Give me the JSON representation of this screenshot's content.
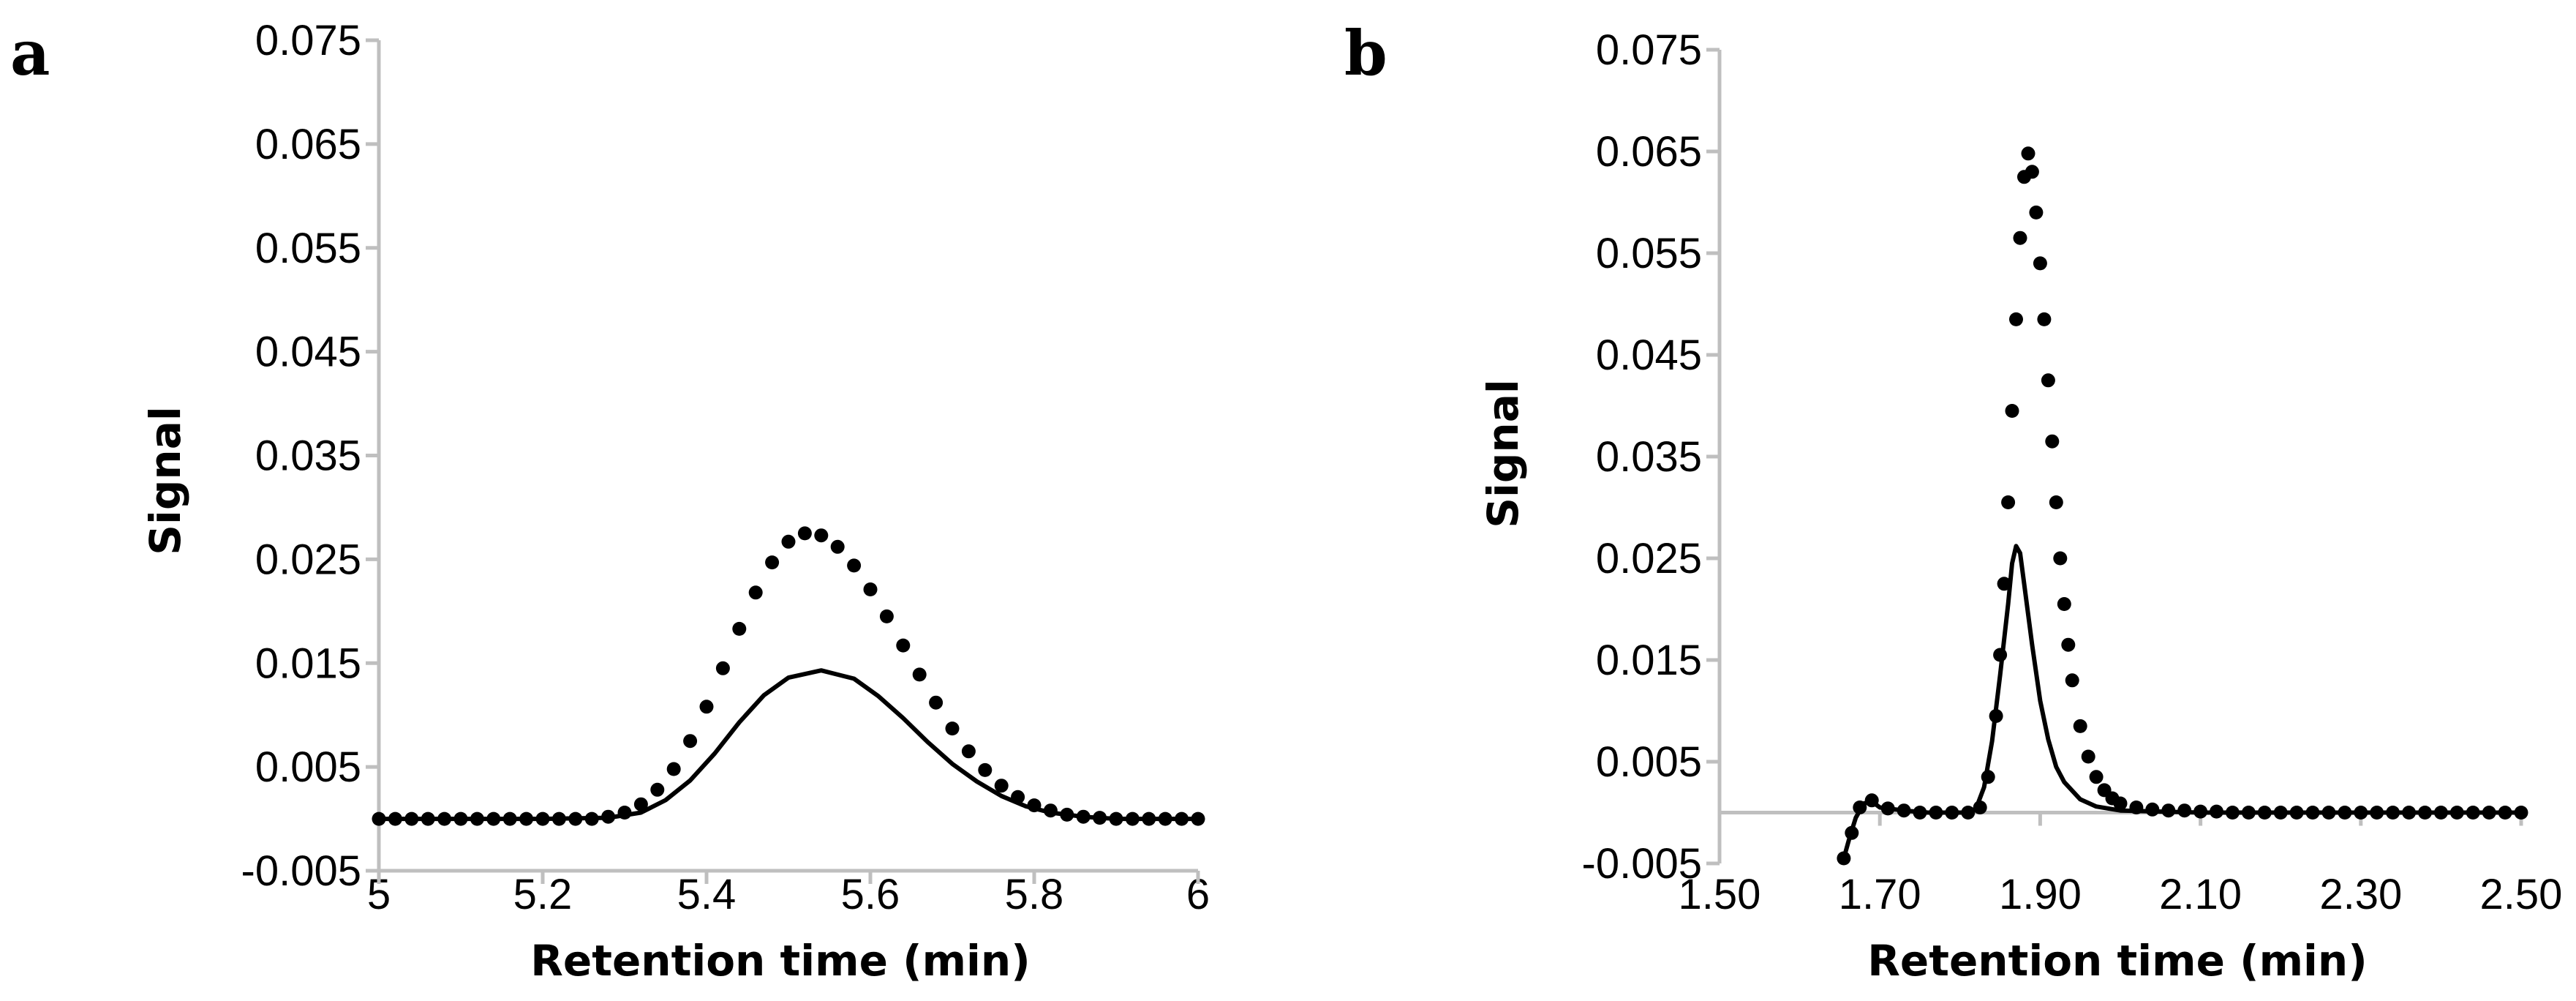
{
  "chart_data": [
    {
      "panel": "a",
      "type": "line",
      "title": "",
      "xlabel": "Retention time (min)",
      "ylabel": "Signal",
      "xlim": [
        5,
        6
      ],
      "ylim": [
        -0.005,
        0.075
      ],
      "xticks": [
        5,
        5.2,
        5.4,
        5.6,
        5.8,
        6
      ],
      "xtick_labels": [
        "5",
        "5.2",
        "5.4",
        "5.6",
        "5.8",
        "6"
      ],
      "yticks": [
        0.075,
        0.065,
        0.055,
        0.045,
        0.035,
        0.025,
        0.015,
        0.005,
        -0.005
      ],
      "ytick_labels": [
        "0.075",
        "0.065",
        "0.055",
        "0.045",
        "0.035",
        "0.025",
        "0.015",
        "0.005",
        "-0.005"
      ],
      "baseline": 0,
      "series": [
        {
          "name": "solid",
          "style": "solid",
          "x": [
            5.0,
            5.1,
            5.2,
            5.28,
            5.32,
            5.35,
            5.38,
            5.41,
            5.44,
            5.47,
            5.5,
            5.54,
            5.58,
            5.61,
            5.64,
            5.67,
            5.7,
            5.73,
            5.76,
            5.79,
            5.82,
            5.86,
            5.9,
            6.0
          ],
          "y": [
            0.0,
            0.0,
            0.0,
            0.0001,
            0.0006,
            0.0018,
            0.0037,
            0.0063,
            0.0093,
            0.0119,
            0.0136,
            0.0143,
            0.0135,
            0.0118,
            0.0097,
            0.0074,
            0.0053,
            0.0036,
            0.0022,
            0.0012,
            0.0006,
            0.0002,
            0.0,
            0.0
          ]
        },
        {
          "name": "dotted",
          "style": "dotted",
          "x": [
            5.0,
            5.02,
            5.04,
            5.06,
            5.08,
            5.1,
            5.12,
            5.14,
            5.16,
            5.18,
            5.2,
            5.22,
            5.24,
            5.26,
            5.28,
            5.3,
            5.32,
            5.34,
            5.36,
            5.38,
            5.4,
            5.42,
            5.44,
            5.46,
            5.48,
            5.5,
            5.52,
            5.54,
            5.56,
            5.58,
            5.6,
            5.62,
            5.64,
            5.66,
            5.68,
            5.7,
            5.72,
            5.74,
            5.76,
            5.78,
            5.8,
            5.82,
            5.84,
            5.86,
            5.88,
            5.9,
            5.92,
            5.94,
            5.96,
            5.98,
            6.0
          ],
          "y": [
            0.0,
            0.0,
            0.0,
            0.0,
            0.0,
            0.0,
            0.0,
            0.0,
            0.0,
            0.0,
            0.0,
            0.0,
            0.0,
            0.0,
            0.0002,
            0.0006,
            0.0014,
            0.0028,
            0.0048,
            0.0075,
            0.0108,
            0.0145,
            0.0183,
            0.0218,
            0.0247,
            0.0267,
            0.0275,
            0.0273,
            0.0262,
            0.0244,
            0.0221,
            0.0195,
            0.0167,
            0.0139,
            0.0112,
            0.0087,
            0.0065,
            0.0047,
            0.0032,
            0.0021,
            0.0013,
            0.0008,
            0.0004,
            0.0002,
            0.0001,
            0.0,
            0.0,
            0.0,
            0.0,
            0.0,
            0.0
          ]
        }
      ]
    },
    {
      "panel": "b",
      "type": "line",
      "title": "",
      "xlabel": "Retention time (min)",
      "ylabel": "Signal",
      "xlim": [
        1.5,
        2.5
      ],
      "ylim": [
        -0.005,
        0.075
      ],
      "xticks": [
        1.5,
        1.7,
        1.9,
        2.1,
        2.3,
        2.5
      ],
      "xtick_labels": [
        "1.50",
        "1.70",
        "1.90",
        "2.10",
        "2.30",
        "2.50"
      ],
      "yticks": [
        0.075,
        0.065,
        0.055,
        0.045,
        0.035,
        0.025,
        0.015,
        0.005,
        -0.005
      ],
      "ytick_labels": [
        "0.075",
        "0.065",
        "0.055",
        "0.045",
        "0.035",
        "0.025",
        "0.015",
        "0.005",
        "-0.005"
      ],
      "baseline": 0,
      "series": [
        {
          "name": "solid",
          "style": "solid",
          "x": [
            1.655,
            1.662,
            1.67,
            1.68,
            1.69,
            1.7,
            1.73,
            1.76,
            1.79,
            1.81,
            1.82,
            1.83,
            1.84,
            1.85,
            1.86,
            1.865,
            1.87,
            1.875,
            1.88,
            1.89,
            1.9,
            1.91,
            1.92,
            1.93,
            1.95,
            1.97,
            2.0,
            2.05,
            2.1,
            2.2,
            2.3,
            2.4,
            2.5
          ],
          "y": [
            -0.0045,
            -0.0025,
            -0.0005,
            0.0009,
            0.0011,
            0.0005,
            0.0002,
            0.0,
            0.0,
            0.0,
            0.0004,
            0.0025,
            0.007,
            0.0135,
            0.0205,
            0.0245,
            0.0262,
            0.0255,
            0.0225,
            0.0165,
            0.011,
            0.0072,
            0.0045,
            0.003,
            0.0013,
            0.0006,
            0.0002,
            0.0001,
            0.0,
            0.0,
            0.0,
            0.0,
            0.0
          ]
        },
        {
          "name": "dotted",
          "style": "dotted",
          "x": [
            1.655,
            1.665,
            1.675,
            1.69,
            1.71,
            1.73,
            1.75,
            1.77,
            1.79,
            1.81,
            1.825,
            1.835,
            1.845,
            1.85,
            1.855,
            1.86,
            1.865,
            1.87,
            1.875,
            1.88,
            1.885,
            1.89,
            1.895,
            1.9,
            1.905,
            1.91,
            1.915,
            1.92,
            1.925,
            1.93,
            1.935,
            1.94,
            1.95,
            1.96,
            1.97,
            1.98,
            1.99,
            2.0,
            2.02,
            2.04,
            2.06,
            2.08,
            2.1,
            2.12,
            2.14,
            2.16,
            2.18,
            2.2,
            2.22,
            2.24,
            2.26,
            2.28,
            2.3,
            2.32,
            2.34,
            2.36,
            2.38,
            2.4,
            2.42,
            2.44,
            2.46,
            2.48,
            2.5
          ],
          "y": [
            -0.0045,
            -0.002,
            0.0005,
            0.0012,
            0.0004,
            0.0002,
            0.0,
            0.0,
            0.0,
            0.0,
            0.0005,
            0.0035,
            0.0095,
            0.0155,
            0.0225,
            0.0305,
            0.0395,
            0.0485,
            0.0565,
            0.0625,
            0.0648,
            0.063,
            0.059,
            0.054,
            0.0485,
            0.0425,
            0.0365,
            0.0305,
            0.025,
            0.0205,
            0.0165,
            0.013,
            0.0085,
            0.0055,
            0.0035,
            0.0022,
            0.0014,
            0.0009,
            0.0005,
            0.0003,
            0.0002,
            0.0002,
            0.0001,
            0.0001,
            0.0,
            0.0,
            0.0,
            0.0,
            0.0,
            0.0,
            0.0,
            0.0,
            0.0,
            0.0,
            0.0,
            0.0,
            0.0,
            0.0,
            0.0,
            0.0,
            0.0,
            0.0,
            0.0
          ]
        }
      ]
    }
  ]
}
